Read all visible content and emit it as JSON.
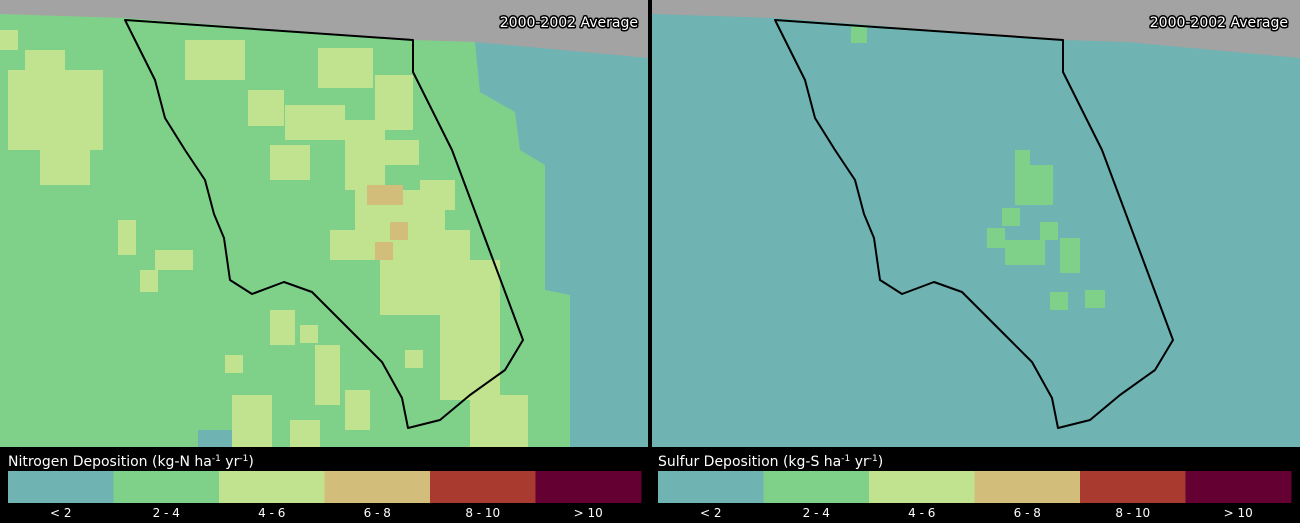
{
  "panels": [
    {
      "period": "2000-2002 Average",
      "legend_title": [
        "Nitrogen Deposition (kg-N ha",
        "-1",
        " yr",
        "-1",
        ")"
      ],
      "legend": [
        {
          "label": "< 2",
          "color": "#6fb3b3"
        },
        {
          "label": "2 - 4",
          "color": "#7fd18a"
        },
        {
          "label": "4 - 6",
          "color": "#c1e28f"
        },
        {
          "label": "6 - 8",
          "color": "#d2bd7b"
        },
        {
          "label": "8 - 10",
          "color": "#a83a30"
        },
        {
          "label": "> 10",
          "color": "#650032"
        }
      ]
    },
    {
      "period": "2000-2002 Average",
      "legend_title": [
        "Sulfur Deposition (kg-S ha",
        "-1",
        " yr",
        "-1",
        ")"
      ],
      "legend": [
        {
          "label": "< 2",
          "color": "#6fb3b3"
        },
        {
          "label": "2 - 4",
          "color": "#7fd18a"
        },
        {
          "label": "4 - 6",
          "color": "#c1e28f"
        },
        {
          "label": "6 - 8",
          "color": "#d2bd7b"
        },
        {
          "label": "8 - 10",
          "color": "#a83a30"
        },
        {
          "label": "> 10",
          "color": "#650032"
        }
      ]
    }
  ]
}
